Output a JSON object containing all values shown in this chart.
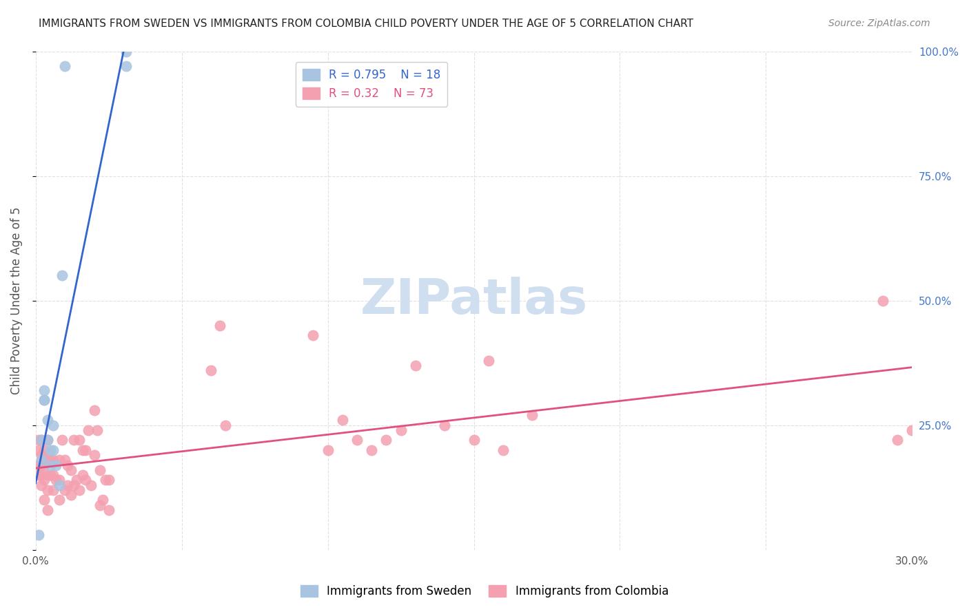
{
  "title": "IMMIGRANTS FROM SWEDEN VS IMMIGRANTS FROM COLOMBIA CHILD POVERTY UNDER THE AGE OF 5 CORRELATION CHART",
  "source": "Source: ZipAtlas.com",
  "ylabel": "Child Poverty Under the Age of 5",
  "xlabel": "",
  "xlim": [
    0.0,
    0.3
  ],
  "ylim": [
    0.0,
    1.0
  ],
  "xticks": [
    0.0,
    0.05,
    0.1,
    0.15,
    0.2,
    0.25,
    0.3
  ],
  "xticklabels": [
    "0.0%",
    "",
    "",
    "",
    "",
    "",
    "30.0%"
  ],
  "yticks_left": [
    0.0,
    0.25,
    0.5,
    0.75,
    1.0
  ],
  "yticklabels_left": [
    "",
    "",
    "",
    "",
    ""
  ],
  "yticks_right": [
    0.0,
    0.25,
    0.5,
    0.75,
    1.0
  ],
  "yticklabels_right": [
    "",
    "25.0%",
    "50.0%",
    "75.0%",
    "100.0%"
  ],
  "sweden_R": 0.795,
  "sweden_N": 18,
  "colombia_R": 0.32,
  "colombia_N": 73,
  "sweden_color": "#a8c4e0",
  "colombia_color": "#f4a0b0",
  "sweden_line_color": "#3366cc",
  "colombia_line_color": "#e05080",
  "legend_label_sweden": "Immigrants from Sweden",
  "legend_label_colombia": "Immigrants from Colombia",
  "watermark": "ZIPatlas",
  "watermark_color": "#d0dff0",
  "background_color": "#ffffff",
  "grid_color": "#e0e0e0",
  "sweden_x": [
    0.001,
    0.002,
    0.002,
    0.003,
    0.003,
    0.003,
    0.004,
    0.004,
    0.005,
    0.005,
    0.006,
    0.006,
    0.007,
    0.008,
    0.009,
    0.01,
    0.031,
    0.031
  ],
  "sweden_y": [
    0.03,
    0.18,
    0.22,
    0.3,
    0.3,
    0.32,
    0.22,
    0.26,
    0.17,
    0.2,
    0.2,
    0.25,
    0.17,
    0.13,
    0.55,
    0.97,
    0.97,
    1.0
  ],
  "colombia_x": [
    0.001,
    0.001,
    0.001,
    0.001,
    0.002,
    0.002,
    0.002,
    0.002,
    0.002,
    0.003,
    0.003,
    0.003,
    0.003,
    0.004,
    0.004,
    0.004,
    0.004,
    0.004,
    0.005,
    0.005,
    0.006,
    0.006,
    0.006,
    0.007,
    0.008,
    0.008,
    0.008,
    0.009,
    0.01,
    0.01,
    0.011,
    0.011,
    0.012,
    0.012,
    0.013,
    0.013,
    0.014,
    0.015,
    0.015,
    0.016,
    0.016,
    0.017,
    0.017,
    0.018,
    0.019,
    0.02,
    0.02,
    0.021,
    0.022,
    0.022,
    0.023,
    0.024,
    0.025,
    0.025,
    0.06,
    0.063,
    0.065,
    0.095,
    0.1,
    0.105,
    0.11,
    0.115,
    0.12,
    0.125,
    0.13,
    0.14,
    0.15,
    0.155,
    0.16,
    0.17,
    0.29,
    0.295,
    0.3
  ],
  "colombia_y": [
    0.15,
    0.17,
    0.2,
    0.22,
    0.13,
    0.15,
    0.17,
    0.19,
    0.22,
    0.1,
    0.14,
    0.17,
    0.2,
    0.08,
    0.12,
    0.15,
    0.18,
    0.22,
    0.15,
    0.18,
    0.12,
    0.15,
    0.18,
    0.14,
    0.1,
    0.14,
    0.18,
    0.22,
    0.12,
    0.18,
    0.13,
    0.17,
    0.11,
    0.16,
    0.13,
    0.22,
    0.14,
    0.12,
    0.22,
    0.15,
    0.2,
    0.14,
    0.2,
    0.24,
    0.13,
    0.19,
    0.28,
    0.24,
    0.09,
    0.16,
    0.1,
    0.14,
    0.08,
    0.14,
    0.36,
    0.45,
    0.25,
    0.43,
    0.2,
    0.26,
    0.22,
    0.2,
    0.22,
    0.24,
    0.37,
    0.25,
    0.22,
    0.38,
    0.2,
    0.27,
    0.5,
    0.22,
    0.24
  ]
}
